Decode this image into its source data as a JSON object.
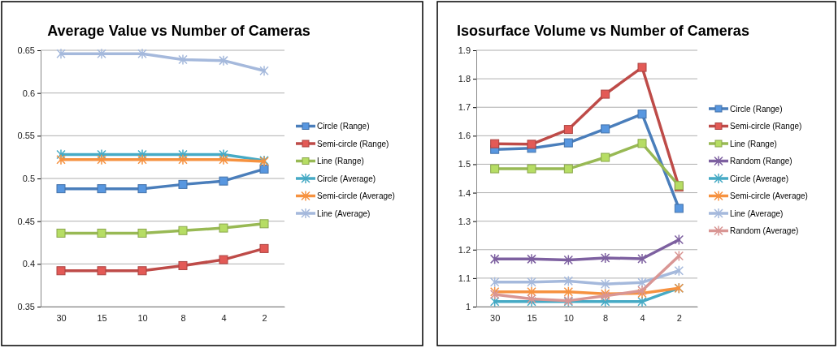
{
  "chart_data": [
    {
      "type": "line",
      "title": "Average Value vs Number of Cameras",
      "categories": [
        "30",
        "15",
        "10",
        "8",
        "4",
        "2"
      ],
      "ylim": [
        0.35,
        0.65
      ],
      "yticks": [
        0.35,
        0.4,
        0.45,
        0.5,
        0.55,
        0.6,
        0.65
      ],
      "grid": "y",
      "legend": "right",
      "series": [
        {
          "name": "Circle (Range)",
          "color": "#4a7ebb",
          "marker": "square",
          "values": [
            0.488,
            0.488,
            0.488,
            0.493,
            0.497,
            0.511
          ]
        },
        {
          "name": "Semi-circle (Range)",
          "color": "#be4b48",
          "marker": "square",
          "values": [
            0.392,
            0.392,
            0.392,
            0.398,
            0.405,
            0.418
          ]
        },
        {
          "name": "Line (Range)",
          "color": "#98b954",
          "marker": "square",
          "values": [
            0.436,
            0.436,
            0.436,
            0.439,
            0.442,
            0.447
          ]
        },
        {
          "name": "Circle (Average)",
          "color": "#46aac5",
          "marker": "cross",
          "values": [
            0.528,
            0.528,
            0.528,
            0.528,
            0.528,
            0.521
          ]
        },
        {
          "name": "Semi-circle (Average)",
          "color": "#f69240",
          "marker": "cross",
          "values": [
            0.522,
            0.522,
            0.522,
            0.522,
            0.522,
            0.52
          ]
        },
        {
          "name": "Line (Average)",
          "color": "#a5b9dc",
          "marker": "cross",
          "values": [
            0.646,
            0.646,
            0.646,
            0.639,
            0.638,
            0.626
          ]
        }
      ]
    },
    {
      "type": "line",
      "title": "Isosurface Volume vs Number of Cameras",
      "categories": [
        "30",
        "15",
        "10",
        "8",
        "4",
        "2"
      ],
      "ylim": [
        1,
        1.9
      ],
      "yticks": [
        {
          "value": 1,
          "label": "1"
        },
        1.1,
        1.2,
        1.3,
        1.4,
        1.5,
        1.6,
        1.7,
        1.8,
        1.9
      ],
      "grid": "y",
      "legend": "right",
      "series": [
        {
          "name": "Circle (Range)",
          "color": "#4a7ebb",
          "marker": "square",
          "values": [
            1.552,
            1.556,
            1.575,
            1.624,
            1.676,
            1.345
          ]
        },
        {
          "name": "Semi-circle (Range)",
          "color": "#be4b48",
          "marker": "square",
          "values": [
            1.572,
            1.57,
            1.622,
            1.746,
            1.84,
            1.42
          ]
        },
        {
          "name": "Line (Range)",
          "color": "#98b954",
          "marker": "square",
          "values": [
            1.484,
            1.484,
            1.484,
            1.524,
            1.573,
            1.425
          ]
        },
        {
          "name": "Random (Range)",
          "color": "#7d60a0",
          "marker": "cross",
          "values": [
            1.167,
            1.167,
            1.164,
            1.171,
            1.168,
            1.235
          ]
        },
        {
          "name": "Circle (Average)",
          "color": "#46aac5",
          "marker": "cross",
          "values": [
            1.018,
            1.018,
            1.018,
            1.018,
            1.018,
            1.065
          ]
        },
        {
          "name": "Semi-circle (Average)",
          "color": "#f69240",
          "marker": "cross",
          "values": [
            1.052,
            1.052,
            1.052,
            1.045,
            1.047,
            1.065
          ]
        },
        {
          "name": "Line (Average)",
          "color": "#a5b9dc",
          "marker": "cross",
          "values": [
            1.086,
            1.086,
            1.09,
            1.079,
            1.085,
            1.126
          ]
        },
        {
          "name": "Random (Average)",
          "color": "#d99694",
          "marker": "cross",
          "values": [
            1.043,
            1.027,
            1.021,
            1.038,
            1.056,
            1.178
          ]
        }
      ]
    }
  ]
}
